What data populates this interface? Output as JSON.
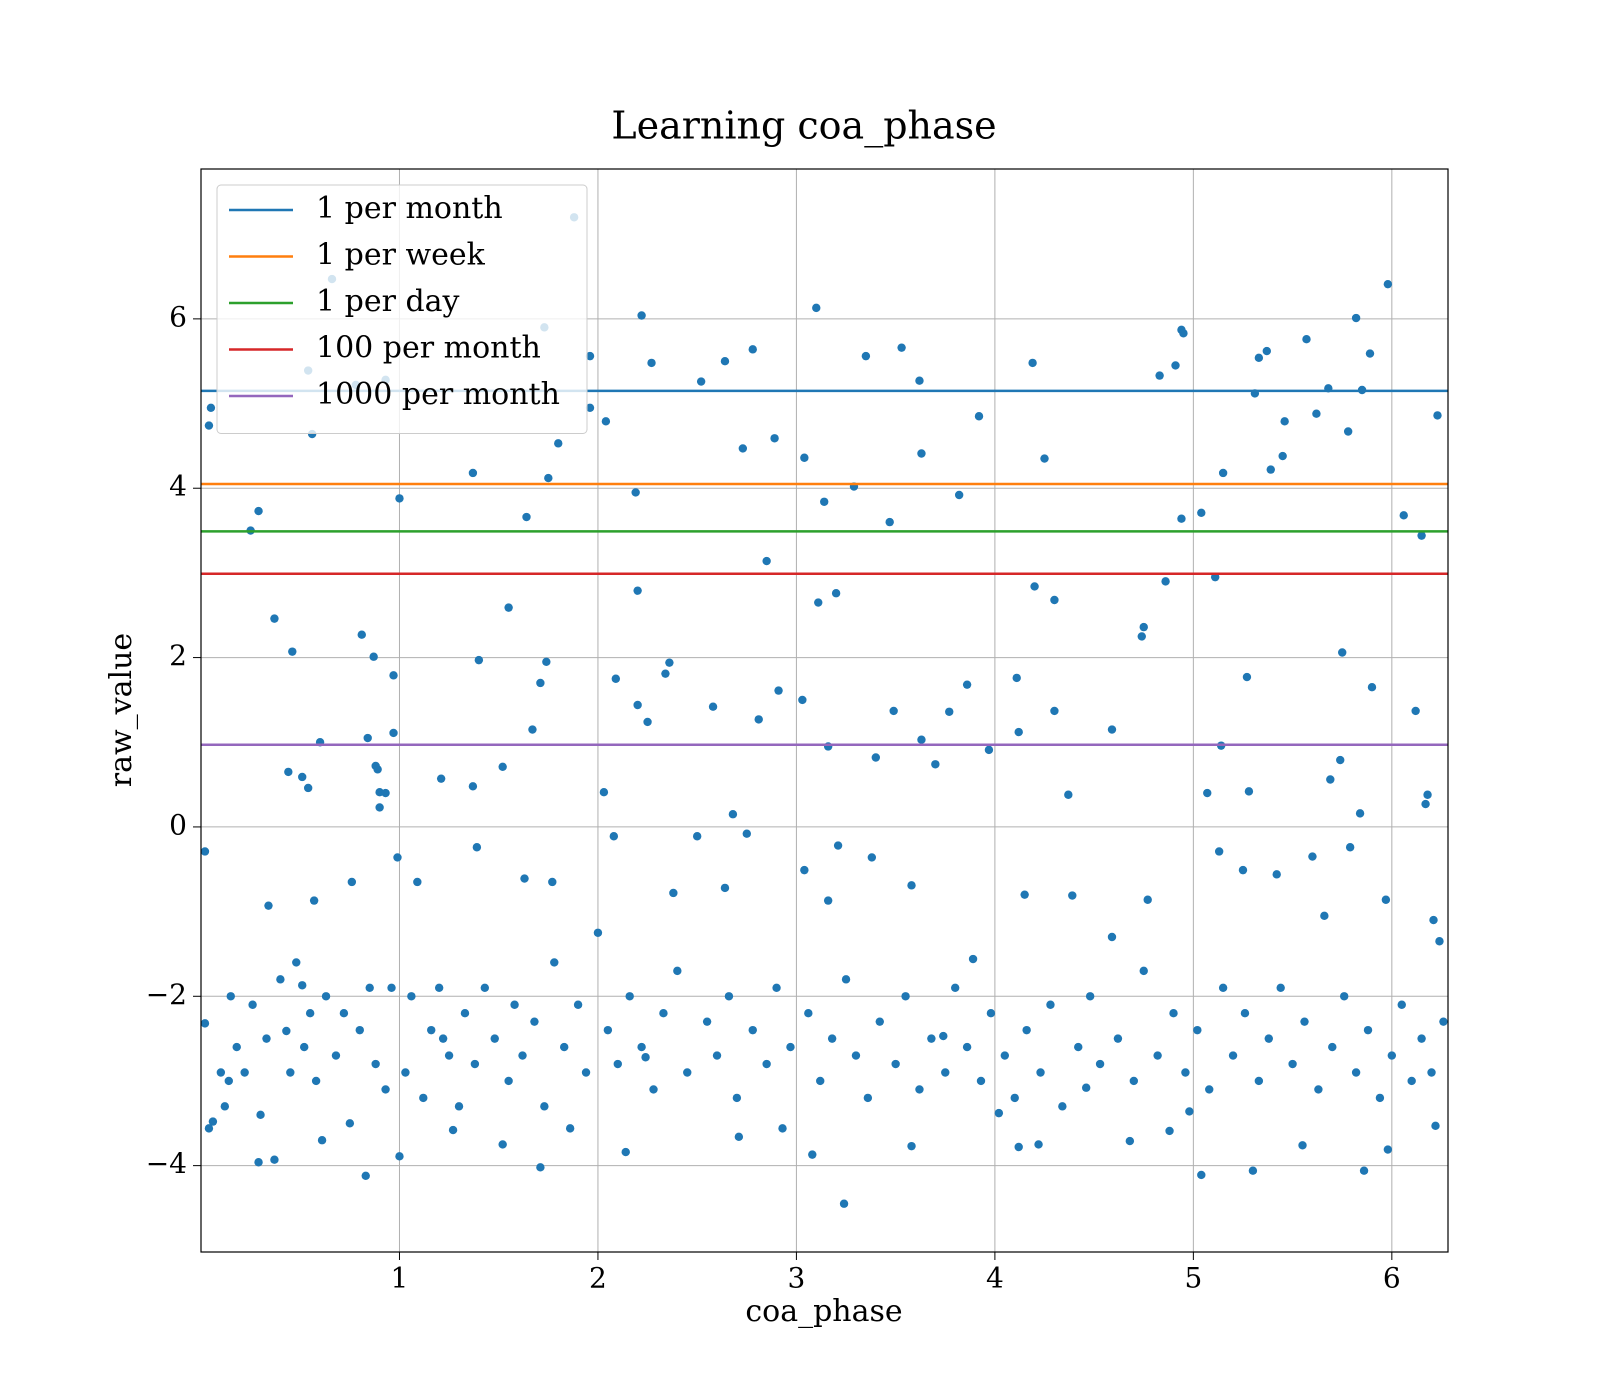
{
  "chart_data": {
    "type": "scatter",
    "title": "Learning coa_phase",
    "x_label": "coa_phase",
    "y_label": "raw_value",
    "color": "#1f77b4",
    "grid": true,
    "legend": "upper left",
    "xlim": [
      0,
      6.283
    ],
    "ylim": [
      -5.02,
      7.77
    ],
    "xticks": [
      1,
      2,
      3,
      4,
      5,
      6
    ],
    "yticks": [
      {
        "value": -4,
        "label": "−4"
      },
      {
        "value": -2,
        "label": "−2"
      },
      0,
      2,
      4,
      6
    ],
    "lines": [
      {
        "name": "1 per month",
        "color": "#1f77b4",
        "value": 5.15
      },
      {
        "name": "1 per week",
        "color": "#ff7f0e",
        "value": 4.05
      },
      {
        "name": "1 per day",
        "color": "#2ca02c",
        "value": 3.49
      },
      {
        "name": "100 per month",
        "color": "#d62728",
        "value": 2.99
      },
      {
        "name": "1000 per month",
        "color": "#9467bd",
        "value": 0.97
      }
    ],
    "x": [
      0.02,
      0.04,
      0.05,
      0.25,
      0.29,
      0.37,
      0.44,
      0.46,
      0.51,
      0.54,
      0.54,
      0.56,
      0.6,
      0.66,
      0.78,
      0.81,
      0.84,
      0.87,
      0.88,
      0.89,
      0.9,
      0.9,
      0.93,
      0.93,
      0.97,
      0.97,
      1.0,
      1.21,
      1.37,
      1.37,
      1.4,
      1.52,
      1.55,
      1.64,
      1.67,
      1.71,
      1.73,
      1.74,
      1.75,
      1.8,
      1.88,
      1.96,
      1.96,
      2.03,
      2.04,
      2.09,
      2.19,
      2.2,
      2.2,
      2.22,
      2.25,
      2.27,
      2.34,
      2.36,
      2.52,
      2.58,
      2.64,
      2.68,
      2.73,
      2.78,
      2.81,
      2.85,
      2.89,
      2.91,
      3.03,
      3.04,
      3.1,
      3.11,
      3.14,
      3.16,
      3.2,
      3.29,
      3.35,
      3.4,
      3.47,
      3.49,
      3.53,
      3.62,
      3.63,
      3.63,
      3.7,
      3.77,
      3.82,
      3.86,
      3.92,
      3.97,
      4.11,
      4.12,
      4.19,
      4.2,
      4.25,
      4.3,
      4.3,
      4.37,
      4.59,
      4.74,
      4.75,
      4.83,
      4.86,
      4.91,
      4.94,
      4.95,
      4.94,
      5.04,
      5.07,
      5.11,
      5.14,
      5.15,
      5.27,
      5.28,
      5.31,
      5.33,
      5.37,
      5.39,
      5.45,
      5.46,
      5.57,
      5.62,
      5.68,
      5.69,
      5.74,
      5.75,
      5.78,
      5.82,
      5.84,
      5.85,
      5.89,
      5.9,
      5.98,
      6.06,
      6.12,
      6.15,
      6.17,
      6.18,
      6.23,
      0.02,
      0.04,
      0.06,
      0.14,
      0.29,
      0.34,
      0.37,
      0.43,
      0.51,
      0.61,
      0.57,
      0.76,
      0.83,
      0.99,
      1.0,
      1.09,
      1.22,
      1.27,
      1.39,
      1.52,
      1.63,
      1.71,
      1.77,
      1.86,
      2.0,
      2.08,
      2.14,
      2.24,
      2.38,
      2.5,
      2.64,
      2.71,
      2.75,
      2.93,
      3.04,
      3.08,
      3.16,
      3.21,
      3.24,
      3.38,
      3.58,
      3.58,
      3.74,
      3.89,
      4.02,
      4.12,
      4.15,
      4.22,
      4.39,
      4.46,
      4.59,
      4.68,
      4.77,
      4.88,
      4.98,
      5.04,
      5.13,
      5.25,
      5.3,
      5.42,
      5.55,
      5.6,
      5.66,
      5.79,
      5.86,
      5.97,
      5.98,
      6.21,
      6.24,
      6.22,
      0.1,
      0.12,
      0.15,
      0.18,
      0.22,
      0.26,
      0.3,
      0.33,
      0.4,
      0.45,
      0.48,
      0.52,
      0.55,
      0.58,
      0.63,
      0.68,
      0.72,
      0.75,
      0.8,
      0.85,
      0.88,
      0.93,
      0.96,
      1.03,
      1.06,
      1.12,
      1.16,
      1.2,
      1.25,
      1.3,
      1.33,
      1.38,
      1.43,
      1.48,
      1.55,
      1.58,
      1.62,
      1.68,
      1.73,
      1.78,
      1.83,
      1.9,
      1.94,
      2.05,
      2.1,
      2.16,
      2.22,
      2.28,
      2.33,
      2.4,
      2.45,
      2.55,
      2.6,
      2.66,
      2.7,
      2.78,
      2.85,
      2.9,
      2.97,
      3.06,
      3.12,
      3.18,
      3.25,
      3.3,
      3.36,
      3.42,
      3.5,
      3.55,
      3.62,
      3.68,
      3.75,
      3.8,
      3.86,
      3.93,
      3.98,
      4.05,
      4.1,
      4.16,
      4.23,
      4.28,
      4.34,
      4.42,
      4.48,
      4.53,
      4.62,
      4.7,
      4.75,
      4.82,
      4.9,
      4.96,
      5.02,
      5.08,
      5.15,
      5.2,
      5.26,
      5.33,
      5.38,
      5.44,
      5.5,
      5.56,
      5.63,
      5.7,
      5.76,
      5.82,
      5.88,
      5.94,
      6.0,
      6.05,
      6.1,
      6.15,
      6.2,
      6.26
    ],
    "y": [
      -0.29,
      4.74,
      4.95,
      3.5,
      3.73,
      2.46,
      0.65,
      2.07,
      0.59,
      0.46,
      5.39,
      4.64,
      1.0,
      6.47,
      5.22,
      2.27,
      1.05,
      2.01,
      0.72,
      0.68,
      0.23,
      0.41,
      0.4,
      5.28,
      1.79,
      1.11,
      3.88,
      0.57,
      0.48,
      4.18,
      1.97,
      0.71,
      2.59,
      3.66,
      1.15,
      1.7,
      5.9,
      1.95,
      4.12,
      4.53,
      7.2,
      4.95,
      5.56,
      0.41,
      4.79,
      1.75,
      3.95,
      1.44,
      2.79,
      6.04,
      1.24,
      5.48,
      1.81,
      1.94,
      5.26,
      1.42,
      5.5,
      0.15,
      4.47,
      5.64,
      1.27,
      3.14,
      4.59,
      1.61,
      1.5,
      4.36,
      6.13,
      2.65,
      3.84,
      0.95,
      2.76,
      4.02,
      5.56,
      0.82,
      3.6,
      1.37,
      5.66,
      5.27,
      1.03,
      4.41,
      0.74,
      1.36,
      3.92,
      1.68,
      4.85,
      0.91,
      1.76,
      1.12,
      5.48,
      2.84,
      4.35,
      2.68,
      1.37,
      0.38,
      1.15,
      2.25,
      2.36,
      5.33,
      2.9,
      5.45,
      5.87,
      5.83,
      3.64,
      3.71,
      0.4,
      2.95,
      0.96,
      4.18,
      1.77,
      0.42,
      5.12,
      5.54,
      5.62,
      4.22,
      4.38,
      4.79,
      5.76,
      4.88,
      5.18,
      0.56,
      0.79,
      2.06,
      4.67,
      6.01,
      0.16,
      5.16,
      5.59,
      1.65,
      6.41,
      3.68,
      1.37,
      3.44,
      0.27,
      0.38,
      4.86,
      -2.32,
      -3.56,
      -3.48,
      -3.0,
      -3.96,
      -0.93,
      -3.93,
      -2.41,
      -1.87,
      -3.7,
      -0.87,
      -0.65,
      -4.12,
      -0.36,
      -3.89,
      -0.65,
      -2.5,
      -3.58,
      -0.24,
      -3.75,
      -0.61,
      -4.02,
      -0.65,
      -3.56,
      -1.25,
      -0.11,
      -3.84,
      -2.72,
      -0.78,
      -0.11,
      -0.72,
      -3.66,
      -0.08,
      -3.56,
      -0.51,
      -3.87,
      -0.87,
      -0.22,
      -4.45,
      -0.36,
      -3.77,
      -0.69,
      -2.47,
      -1.56,
      -3.38,
      -3.78,
      -0.8,
      -3.75,
      -0.81,
      -3.08,
      -1.3,
      -3.71,
      -0.86,
      -3.59,
      -3.36,
      -4.11,
      -0.29,
      -0.51,
      -4.06,
      -0.56,
      -3.76,
      -0.35,
      -1.05,
      -0.24,
      -4.06,
      -0.86,
      -3.81,
      -1.1,
      -1.35,
      -3.53,
      -2.9,
      -3.3,
      -2.0,
      -2.6,
      -2.9,
      -2.1,
      -3.4,
      -2.5,
      -1.8,
      -2.9,
      -1.6,
      -2.6,
      -2.2,
      -3.0,
      -2.0,
      -2.7,
      -2.2,
      -3.5,
      -2.4,
      -1.9,
      -2.8,
      -3.1,
      -1.9,
      -2.9,
      -2.0,
      -3.2,
      -2.4,
      -1.9,
      -2.7,
      -3.3,
      -2.2,
      -2.8,
      -1.9,
      -2.5,
      -3.0,
      -2.1,
      -2.7,
      -2.3,
      -3.3,
      -1.6,
      -2.6,
      -2.1,
      -2.9,
      -2.4,
      -2.8,
      -2.0,
      -2.6,
      -3.1,
      -2.2,
      -1.7,
      -2.9,
      -2.3,
      -2.7,
      -2.0,
      -3.2,
      -2.4,
      -2.8,
      -1.9,
      -2.6,
      -2.2,
      -3.0,
      -2.5,
      -1.8,
      -2.7,
      -3.2,
      -2.3,
      -2.8,
      -2.0,
      -3.1,
      -2.5,
      -2.9,
      -1.9,
      -2.6,
      -3.0,
      -2.2,
      -2.7,
      -3.2,
      -2.4,
      -2.9,
      -2.1,
      -3.3,
      -2.6,
      -2.0,
      -2.8,
      -2.5,
      -3.0,
      -1.7,
      -2.7,
      -2.2,
      -2.9,
      -2.4,
      -3.1,
      -1.9,
      -2.7,
      -2.2,
      -3.0,
      -2.5,
      -1.9,
      -2.8,
      -2.3,
      -3.1,
      -2.6,
      -2.0,
      -2.9,
      -2.4,
      -3.2,
      -2.7,
      -2.1,
      -3.0,
      -2.5,
      -2.9,
      -2.3
    ]
  }
}
